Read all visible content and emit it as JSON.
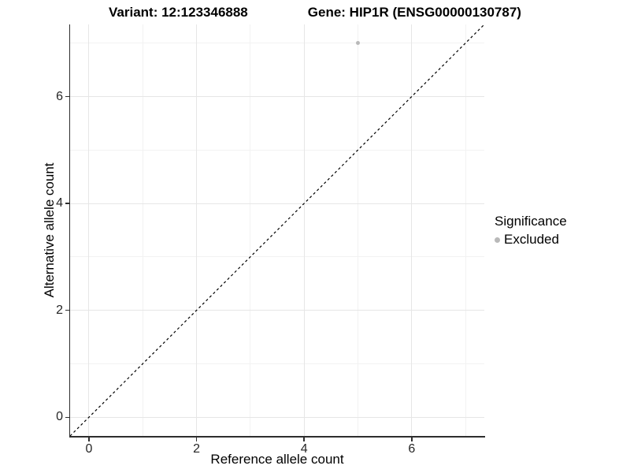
{
  "chart_data": {
    "type": "scatter",
    "titles": [
      "Variant: 12:123346888",
      "Gene: HIP1R (ENSG00000130787)"
    ],
    "xlabel": "Reference allele count",
    "ylabel": "Alternative allele count",
    "xlim": [
      -0.35,
      7.35
    ],
    "ylim": [
      -0.35,
      7.35
    ],
    "x_ticks": [
      0,
      2,
      4,
      6
    ],
    "y_ticks": [
      0,
      2,
      4,
      6
    ],
    "x_minor_ticks": [
      1,
      3,
      5,
      7
    ],
    "y_minor_ticks": [
      1,
      3,
      5,
      7
    ],
    "grid": "major and minor gridlines, light gray on white",
    "reference_line": {
      "equation": "y = x",
      "style": "dashed",
      "color": "#000000"
    },
    "series": [
      {
        "name": "Excluded",
        "color": "#b9b9b9",
        "marker": "circle",
        "points": [
          {
            "x": 5,
            "y": 7
          }
        ]
      }
    ],
    "legend": {
      "title": "Significance",
      "position": "right",
      "items": [
        {
          "label": "Excluded",
          "color": "#b9b9b9"
        }
      ]
    }
  }
}
